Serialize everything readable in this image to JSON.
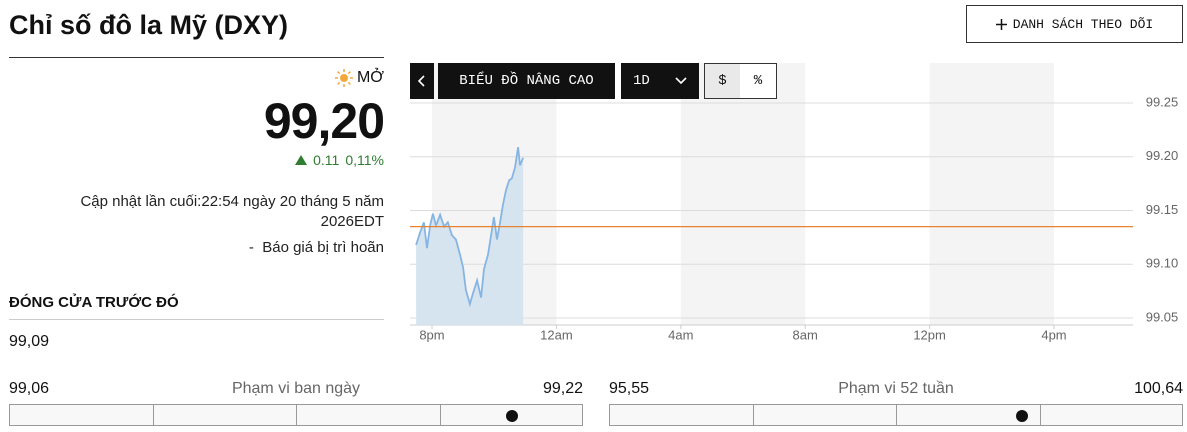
{
  "header": {
    "title": "Chỉ số đô la Mỹ (DXY)",
    "watchlist_button": "DANH SÁCH THEO DÕI"
  },
  "quote": {
    "status": "MỞ",
    "price": "99,20",
    "change": "0.11",
    "change_percent": "0,11%",
    "updated": "Cập nhật lần cuối:22:54 ngày 20 tháng 5 năm 2026EDT",
    "delay_note": "-  Báo giá bị trì hoãn"
  },
  "previous_close": {
    "label": "ĐÓNG CỬA TRƯỚC ĐÓ",
    "value": "99,09"
  },
  "ranges": [
    {
      "low": "99,06",
      "label": "Phạm vi ban ngày",
      "high": "99,22"
    },
    {
      "low": "95,55",
      "label": "Phạm vi 52 tuần",
      "high": "100,64"
    }
  ],
  "toolbar": {
    "chart_button": "BIỂU ĐỒ NÂNG CAO",
    "interval": "1D",
    "currency": "$",
    "percent": "%"
  },
  "chart_data": {
    "type": "line",
    "x": [
      19.49,
      19.61,
      19.74,
      19.84,
      19.94,
      20.03,
      20.13,
      20.26,
      20.39,
      20.51,
      20.64,
      20.77,
      20.9,
      21.0,
      21.09,
      21.22,
      21.32,
      21.45,
      21.58,
      21.67,
      21.8,
      21.9,
      21.99,
      22.09,
      22.19,
      22.28,
      22.38,
      22.48,
      22.57,
      22.67,
      22.77,
      22.83,
      22.93
    ],
    "series": [
      {
        "color": "#86b5e3",
        "values": [
          99.118,
          99.129,
          99.139,
          99.115,
          99.136,
          99.147,
          99.136,
          99.146,
          99.135,
          99.139,
          99.127,
          99.123,
          99.109,
          99.097,
          99.076,
          99.063,
          99.073,
          99.085,
          99.069,
          99.095,
          99.109,
          99.127,
          99.144,
          99.123,
          99.139,
          99.155,
          99.169,
          99.178,
          99.18,
          99.19,
          99.209,
          99.192,
          99.199
        ]
      }
    ],
    "area_color": "#d6e4ef",
    "band_color": "#f4f4f4",
    "reference_line": {
      "value": 99.135,
      "color": "#e8822e"
    },
    "xlim": [
      19.293,
      42.54
    ],
    "ylim": [
      99.0435,
      99.2872
    ],
    "xticks": [
      {
        "value": 20,
        "label": "8pm"
      },
      {
        "value": 24,
        "label": "12am"
      },
      {
        "value": 28,
        "label": "4am"
      },
      {
        "value": 32,
        "label": "8am"
      },
      {
        "value": 36,
        "label": "12pm"
      },
      {
        "value": 40,
        "label": "4pm"
      }
    ],
    "yticks": [
      99.25,
      {
        "value": 99.2,
        "label": "99.20"
      },
      99.15,
      {
        "value": 99.1,
        "label": "99.10"
      },
      99.05
    ],
    "grid": true
  }
}
